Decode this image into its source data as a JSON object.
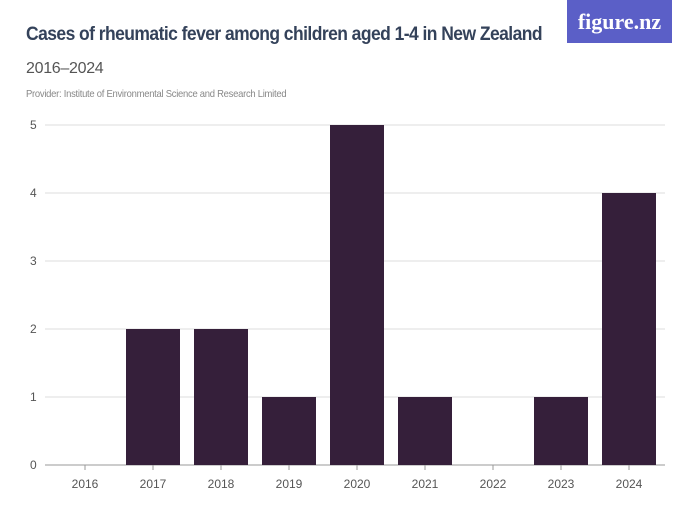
{
  "logo": "figure.nz",
  "chart_data": {
    "type": "bar",
    "title": "Cases of rheumatic fever among children aged 1-4 in New Zealand",
    "subtitle": "2016–2024",
    "provider": "Provider: Institute of Environmental Science and Research Limited",
    "categories": [
      "2016",
      "2017",
      "2018",
      "2019",
      "2020",
      "2021",
      "2022",
      "2023",
      "2024"
    ],
    "values": [
      0,
      2,
      2,
      1,
      5,
      1,
      0,
      1,
      4
    ],
    "ylim": [
      0,
      5
    ],
    "yticks": [
      0,
      1,
      2,
      3,
      4,
      5
    ],
    "grid": true,
    "bar_color": "#351f3a"
  }
}
